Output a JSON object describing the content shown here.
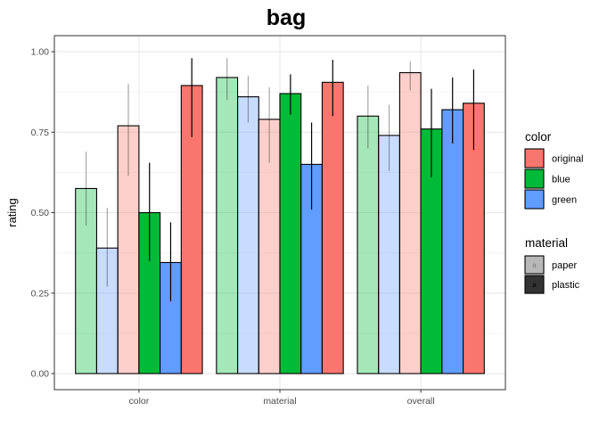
{
  "chart_data": {
    "type": "bar",
    "title": "bag",
    "xlabel": "",
    "ylabel": "rating",
    "ylim": [
      -0.05,
      1.05
    ],
    "yticks": [
      0.0,
      0.25,
      0.5,
      0.75,
      1.0
    ],
    "ytick_labels": [
      "0.00",
      "0.25",
      "0.50",
      "0.75",
      "1.00"
    ],
    "grid": true,
    "categories": [
      "color",
      "material",
      "overall"
    ],
    "fill_legend": {
      "title": "color",
      "entries": [
        {
          "name": "original",
          "color": "#F8766D"
        },
        {
          "name": "blue",
          "color": "#00BA38"
        },
        {
          "name": "green",
          "color": "#619CFF"
        }
      ]
    },
    "alpha_legend": {
      "title": "material",
      "entries": [
        {
          "name": "paper",
          "alpha": 0.35,
          "key_letter": "a"
        },
        {
          "name": "plastic",
          "alpha": 1.0,
          "key_letter": "a"
        }
      ]
    },
    "series": [
      {
        "color": "blue",
        "material": "paper",
        "fill": "#00BA38",
        "values": [
          0.575,
          0.92,
          0.8
        ],
        "err_low": [
          0.46,
          0.85,
          0.7
        ],
        "err_high": [
          0.69,
          0.98,
          0.895
        ]
      },
      {
        "color": "green",
        "material": "paper",
        "fill": "#619CFF",
        "values": [
          0.39,
          0.86,
          0.74
        ],
        "err_low": [
          0.27,
          0.78,
          0.63
        ],
        "err_high": [
          0.515,
          0.925,
          0.835
        ]
      },
      {
        "color": "original",
        "material": "paper",
        "fill": "#F8766D",
        "values": [
          0.77,
          0.79,
          0.935
        ],
        "err_low": [
          0.615,
          0.655,
          0.88
        ],
        "err_high": [
          0.9,
          0.89,
          0.97
        ]
      },
      {
        "color": "blue",
        "material": "plastic",
        "fill": "#00BA38",
        "values": [
          0.5,
          0.87,
          0.76
        ],
        "err_low": [
          0.35,
          0.805,
          0.61
        ],
        "err_high": [
          0.655,
          0.93,
          0.885
        ]
      },
      {
        "color": "green",
        "material": "plastic",
        "fill": "#619CFF",
        "values": [
          0.345,
          0.65,
          0.82
        ],
        "err_low": [
          0.225,
          0.51,
          0.715
        ],
        "err_high": [
          0.47,
          0.78,
          0.92
        ]
      },
      {
        "color": "original",
        "material": "plastic",
        "fill": "#F8766D",
        "values": [
          0.895,
          0.905,
          0.84
        ],
        "err_low": [
          0.735,
          0.8,
          0.695
        ],
        "err_high": [
          0.98,
          0.975,
          0.945
        ]
      }
    ]
  }
}
